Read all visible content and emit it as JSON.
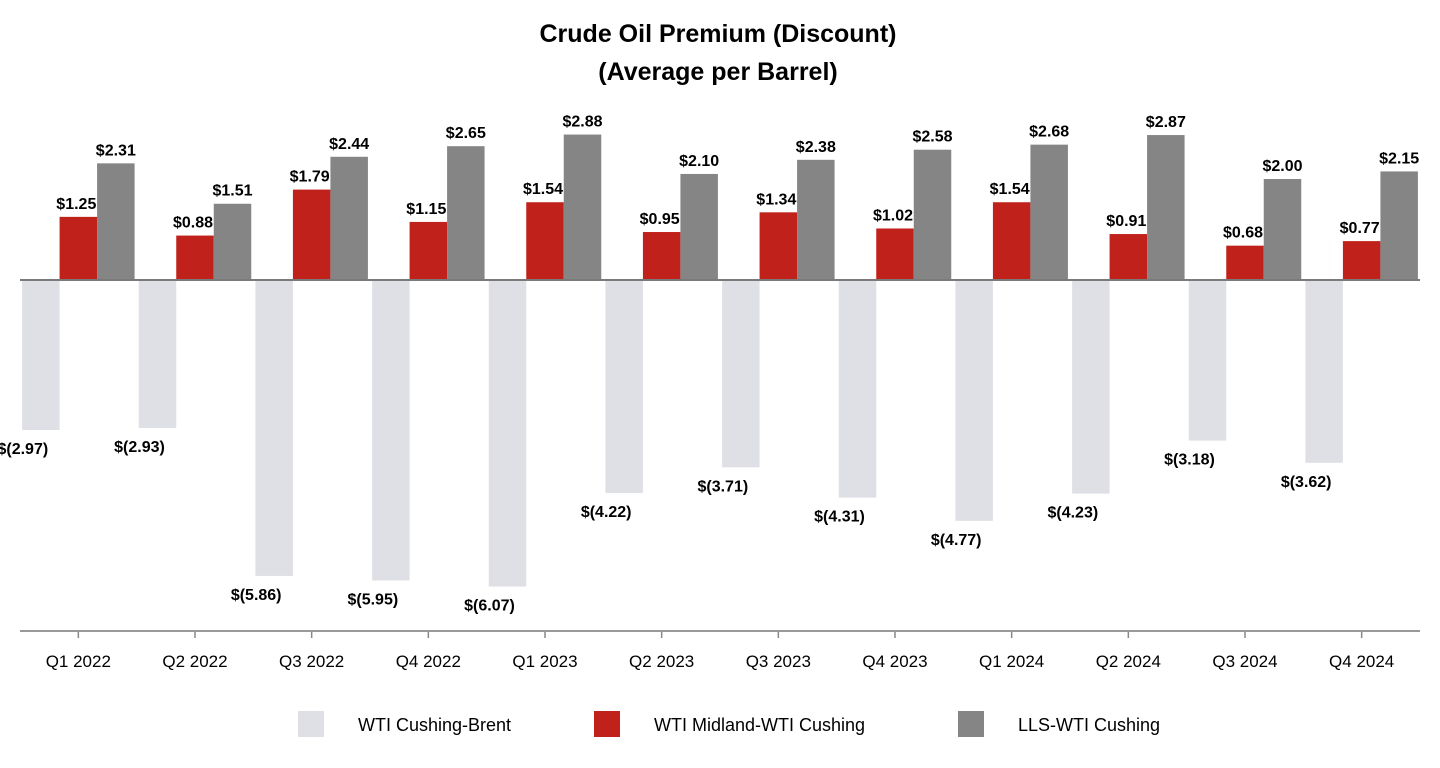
{
  "chart_data": {
    "type": "bar",
    "title": "Crude Oil Premium (Discount)",
    "subtitle": "(Average per Barrel)",
    "categories": [
      "Q1 2022",
      "Q2 2022",
      "Q3 2022",
      "Q4 2022",
      "Q1 2023",
      "Q2 2023",
      "Q3 2023",
      "Q4 2023",
      "Q1 2024",
      "Q2 2024",
      "Q3 2024",
      "Q4 2024"
    ],
    "series": [
      {
        "name": "WTI Cushing-Brent",
        "color": "#dfe0e6",
        "values": [
          -2.97,
          -2.93,
          -5.86,
          -5.95,
          -6.07,
          -4.22,
          -3.71,
          -4.31,
          -4.77,
          -4.23,
          -3.18,
          -3.62
        ],
        "labels": [
          "$(2.97)",
          "$(2.93)",
          "$(5.86)",
          "$(5.95)",
          "$(6.07)",
          "$(4.22)",
          "$(3.71)",
          "$(4.31)",
          "$(4.77)",
          "$(4.23)",
          "$(3.18)",
          "$(3.62)"
        ]
      },
      {
        "name": "WTI Midland-WTI Cushing",
        "color": "#c0211a",
        "values": [
          1.25,
          0.88,
          1.79,
          1.15,
          1.54,
          0.95,
          1.34,
          1.02,
          1.54,
          0.91,
          0.68,
          0.77
        ],
        "labels": [
          "$1.25",
          "$0.88",
          "$1.79",
          "$1.15",
          "$1.54",
          "$0.95",
          "$1.34",
          "$1.02",
          "$1.54",
          "$0.91",
          "$0.68",
          "$0.77"
        ]
      },
      {
        "name": "LLS-WTI Cushing",
        "color": "#858585",
        "values": [
          2.31,
          1.51,
          2.44,
          2.65,
          2.88,
          2.1,
          2.38,
          2.58,
          2.68,
          2.87,
          2.0,
          2.15
        ],
        "labels": [
          "$2.31",
          "$1.51",
          "$2.44",
          "$2.65",
          "$2.88",
          "$2.10",
          "$2.38",
          "$2.58",
          "$2.68",
          "$2.87",
          "$2.00",
          "$2.15"
        ]
      }
    ],
    "ylim": [
      -6.9,
      3.5
    ],
    "grid": false,
    "legend": "bottom"
  }
}
